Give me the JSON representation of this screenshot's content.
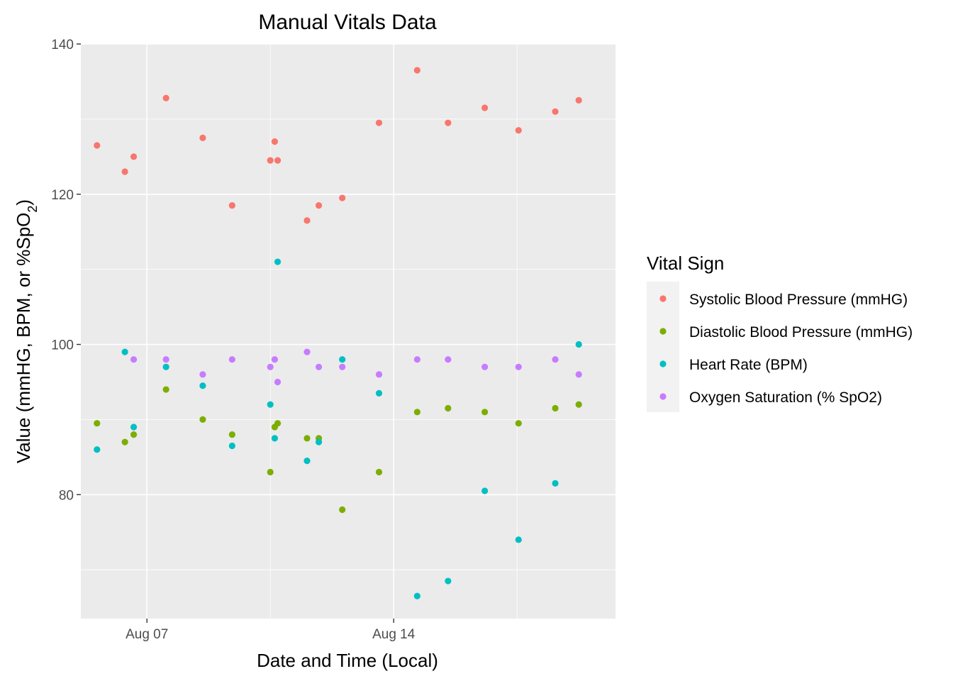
{
  "chart_data": {
    "type": "scatter",
    "title": "Manual Vitals Data",
    "xlabel": "Date and Time (Local)",
    "ylabel_main": "Value (mmHG, BPM, or %SpO",
    "ylabel_sub": "2",
    "ylabel_end": ")",
    "x_ticks": [
      {
        "label": "Aug 07",
        "date": "2023-08-07"
      },
      {
        "label": "Aug 14",
        "date": "2023-08-14"
      }
    ],
    "xlim": [
      "2023-08-05T03:00",
      "2023-08-20T07:00"
    ],
    "ylim": [
      63.5,
      140
    ],
    "y_ticks": [
      80,
      100,
      120,
      140
    ],
    "grid": true,
    "legend": {
      "title": "Vital Sign",
      "position": "right"
    },
    "series": [
      {
        "name": "Systolic Blood Pressure (mmHG)",
        "color": "#F8766D",
        "points": [
          {
            "x": "2023-08-05T14:00",
            "y": 126.5
          },
          {
            "x": "2023-08-06T09:00",
            "y": 123
          },
          {
            "x": "2023-08-06T15:00",
            "y": 125
          },
          {
            "x": "2023-08-07T13:00",
            "y": 132.8
          },
          {
            "x": "2023-08-08T14:00",
            "y": 127.5
          },
          {
            "x": "2023-08-09T10:00",
            "y": 118.5
          },
          {
            "x": "2023-08-10T12:00",
            "y": 124.5
          },
          {
            "x": "2023-08-10T15:00",
            "y": 127
          },
          {
            "x": "2023-08-10T17:00",
            "y": 124.5
          },
          {
            "x": "2023-08-11T13:00",
            "y": 116.5
          },
          {
            "x": "2023-08-11T21:00",
            "y": 118.5
          },
          {
            "x": "2023-08-12T13:00",
            "y": 119.5
          },
          {
            "x": "2023-08-13T14:00",
            "y": 129.5
          },
          {
            "x": "2023-08-14T16:00",
            "y": 136.5
          },
          {
            "x": "2023-08-15T13:00",
            "y": 129.5
          },
          {
            "x": "2023-08-16T14:00",
            "y": 131.5
          },
          {
            "x": "2023-08-17T13:00",
            "y": 128.5
          },
          {
            "x": "2023-08-18T14:00",
            "y": 131
          },
          {
            "x": "2023-08-19T06:00",
            "y": 132.5
          }
        ]
      },
      {
        "name": "Diastolic Blood Pressure (mmHG)",
        "color": "#7CAE00",
        "points": [
          {
            "x": "2023-08-05T14:00",
            "y": 89.5
          },
          {
            "x": "2023-08-06T09:00",
            "y": 87
          },
          {
            "x": "2023-08-06T15:00",
            "y": 88
          },
          {
            "x": "2023-08-07T13:00",
            "y": 94
          },
          {
            "x": "2023-08-08T14:00",
            "y": 90
          },
          {
            "x": "2023-08-09T10:00",
            "y": 88
          },
          {
            "x": "2023-08-10T12:00",
            "y": 83
          },
          {
            "x": "2023-08-10T15:00",
            "y": 89
          },
          {
            "x": "2023-08-10T17:00",
            "y": 89.5
          },
          {
            "x": "2023-08-11T13:00",
            "y": 87.5
          },
          {
            "x": "2023-08-11T21:00",
            "y": 87.5
          },
          {
            "x": "2023-08-12T13:00",
            "y": 78
          },
          {
            "x": "2023-08-13T14:00",
            "y": 83
          },
          {
            "x": "2023-08-14T16:00",
            "y": 91
          },
          {
            "x": "2023-08-15T13:00",
            "y": 91.5
          },
          {
            "x": "2023-08-16T14:00",
            "y": 91
          },
          {
            "x": "2023-08-17T13:00",
            "y": 89.5
          },
          {
            "x": "2023-08-18T14:00",
            "y": 91.5
          },
          {
            "x": "2023-08-19T06:00",
            "y": 92
          }
        ]
      },
      {
        "name": "Heart Rate (BPM)",
        "color": "#00BFC4",
        "points": [
          {
            "x": "2023-08-05T14:00",
            "y": 86
          },
          {
            "x": "2023-08-06T09:00",
            "y": 99
          },
          {
            "x": "2023-08-06T15:00",
            "y": 89
          },
          {
            "x": "2023-08-07T13:00",
            "y": 97
          },
          {
            "x": "2023-08-08T14:00",
            "y": 94.5
          },
          {
            "x": "2023-08-09T10:00",
            "y": 86.5
          },
          {
            "x": "2023-08-10T12:00",
            "y": 92
          },
          {
            "x": "2023-08-10T15:00",
            "y": 87.5
          },
          {
            "x": "2023-08-10T17:00",
            "y": 111
          },
          {
            "x": "2023-08-11T13:00",
            "y": 84.5
          },
          {
            "x": "2023-08-11T21:00",
            "y": 87
          },
          {
            "x": "2023-08-12T13:00",
            "y": 98
          },
          {
            "x": "2023-08-13T14:00",
            "y": 93.5
          },
          {
            "x": "2023-08-14T16:00",
            "y": 66.5
          },
          {
            "x": "2023-08-15T13:00",
            "y": 68.5
          },
          {
            "x": "2023-08-16T14:00",
            "y": 80.5
          },
          {
            "x": "2023-08-17T13:00",
            "y": 74
          },
          {
            "x": "2023-08-18T14:00",
            "y": 81.5
          },
          {
            "x": "2023-08-19T06:00",
            "y": 100
          }
        ]
      },
      {
        "name": "Oxygen Saturation (% SpO2)",
        "color": "#C77CFF",
        "points": [
          {
            "x": "2023-08-06T15:00",
            "y": 98
          },
          {
            "x": "2023-08-07T13:00",
            "y": 98
          },
          {
            "x": "2023-08-08T14:00",
            "y": 96
          },
          {
            "x": "2023-08-09T10:00",
            "y": 98
          },
          {
            "x": "2023-08-10T12:00",
            "y": 97
          },
          {
            "x": "2023-08-10T15:00",
            "y": 98
          },
          {
            "x": "2023-08-10T17:00",
            "y": 95
          },
          {
            "x": "2023-08-11T13:00",
            "y": 99
          },
          {
            "x": "2023-08-11T21:00",
            "y": 97
          },
          {
            "x": "2023-08-12T13:00",
            "y": 97
          },
          {
            "x": "2023-08-13T14:00",
            "y": 96
          },
          {
            "x": "2023-08-14T16:00",
            "y": 98
          },
          {
            "x": "2023-08-15T13:00",
            "y": 98
          },
          {
            "x": "2023-08-16T14:00",
            "y": 97
          },
          {
            "x": "2023-08-17T13:00",
            "y": 97
          },
          {
            "x": "2023-08-18T14:00",
            "y": 98
          },
          {
            "x": "2023-08-19T06:00",
            "y": 96
          }
        ]
      }
    ],
    "panel_background": "#EBEBEB",
    "grid_color": "#FFFFFF"
  }
}
